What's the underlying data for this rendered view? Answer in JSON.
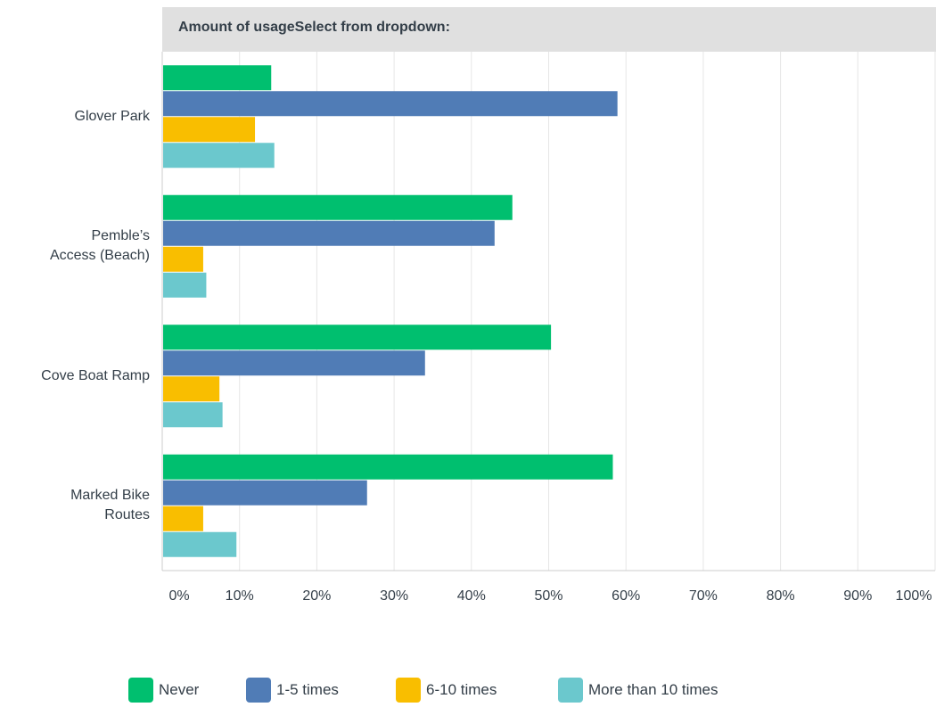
{
  "chart_data": {
    "type": "bar",
    "orientation": "horizontal",
    "title": "Amount of usageSelect from dropdown:",
    "categories": [
      "Glover Park",
      "Pemble’s Access (Beach)",
      "Cove Boat Ramp",
      "Marked Bike Routes"
    ],
    "category_lines": [
      [
        "Glover Park"
      ],
      [
        "Pemble’s",
        "Access (Beach)"
      ],
      [
        "Cove Boat Ramp"
      ],
      [
        "Marked Bike",
        "Routes"
      ]
    ],
    "series": [
      {
        "name": "Never",
        "color": "#00bf6f",
        "values": [
          14.1,
          45.3,
          50.3,
          58.3
        ]
      },
      {
        "name": "1-5 times",
        "color": "#507cb6",
        "values": [
          58.9,
          43.0,
          34.0,
          26.5
        ]
      },
      {
        "name": "6-10 times",
        "color": "#f9be00",
        "values": [
          12.0,
          5.3,
          7.4,
          5.3
        ]
      },
      {
        "name": "More than 10 times",
        "color": "#6bc8cd",
        "values": [
          14.5,
          5.7,
          7.8,
          9.6
        ]
      }
    ],
    "x_ticks": [
      "0%",
      "10%",
      "20%",
      "30%",
      "40%",
      "50%",
      "60%",
      "70%",
      "80%",
      "90%",
      "100%"
    ],
    "xlim": [
      0,
      100
    ],
    "grid": true,
    "legend": "bottom"
  }
}
